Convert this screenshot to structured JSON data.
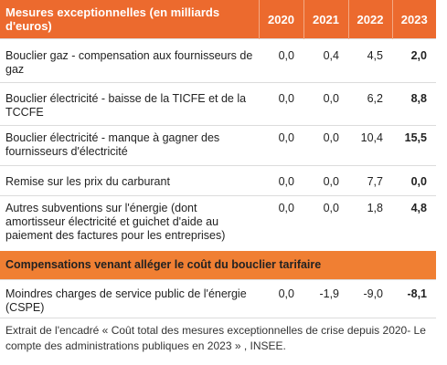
{
  "table": {
    "header": [
      "Mesures exceptionnelles (en milliards d'euros)",
      "2020",
      "2021",
      "2022",
      "2023"
    ],
    "rows": [
      {
        "label": "Bouclier gaz - compensation aux fournisseurs de gaz",
        "v": [
          "0,0",
          "0,4",
          "4,5",
          "2,0"
        ]
      },
      {
        "label": "Bouclier électricité - baisse de la TICFE et de la TCCFE",
        "v": [
          "0,0",
          "0,0",
          "6,2",
          "8,8"
        ]
      },
      {
        "label": "Bouclier électricité - manque à gagner des fournisseurs d'électricité",
        "v": [
          "0,0",
          "0,0",
          "10,4",
          "15,5"
        ]
      },
      {
        "label": "Remise sur les prix du carburant",
        "v": [
          "0,0",
          "0,0",
          "7,7",
          "0,0"
        ]
      },
      {
        "label": "Autres subventions sur l'énergie (dont amortisseur électricité et guichet d'aide au paiement des factures pour les entreprises)",
        "v": [
          "0,0",
          "0,0",
          "1,8",
          "4,8"
        ]
      }
    ],
    "section": "Compensations venant alléger le coût du bouclier tarifaire",
    "rows2": [
      {
        "label": "Moindres charges de service public de l'énergie (CSPE)",
        "v": [
          "0,0",
          "-1,9",
          "-9,0",
          "-8,1"
        ]
      }
    ]
  },
  "note": "Extrait de l'encadré « Coût total des mesures exceptionnelles de crise depuis 2020- Le compte des administrations publiques en 2023 » , INSEE."
}
